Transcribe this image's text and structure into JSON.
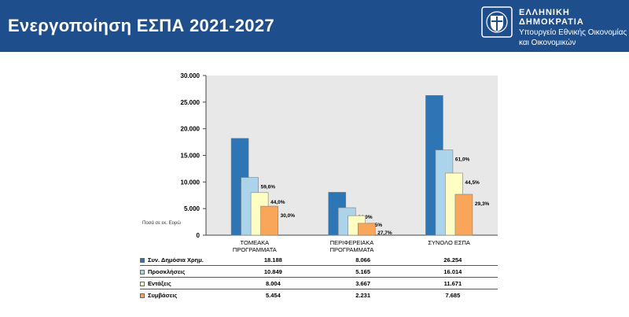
{
  "header": {
    "title": "Ενεργοποίηση ΕΣΠΑ 2021-2027",
    "org_name": "ΕΛΛΗΝΙΚΗ ΔΗΜΟΚΡΑΤΙΑ",
    "org_sub_1": "Υπουργείο Εθνικής Οικονομίας",
    "org_sub_2": "και Οικονομικών"
  },
  "units_label": "Ποσά σε εκ. Ευρώ",
  "chart_data": {
    "type": "bar",
    "categories": [
      [
        "ΤΟΜΕΑΚΑ",
        "ΠΡΟΓΡΑΜΜΑΤΑ"
      ],
      [
        "ΠΕΡΙΦΕΡΕΙΑΚΑ",
        "ΠΡΟΓΡΑΜΜΑΤΑ"
      ],
      [
        "ΣΥΝΟΛΟ ΕΣΠΑ"
      ]
    ],
    "series": [
      {
        "name": "Συν. Δημόσια Χρημ.",
        "color": "#2e75b6",
        "values": [
          18188,
          8066,
          26254
        ],
        "labels": [
          "18.188",
          "8.066",
          "26.254"
        ],
        "data_labels": [
          "",
          "",
          ""
        ]
      },
      {
        "name": "Προσκλήσεις",
        "color": "#abd4ea",
        "values": [
          10849,
          5165,
          16014
        ],
        "labels": [
          "10.849",
          "5.165",
          "16.014"
        ],
        "data_labels": [
          "59,6%",
          "64,0%",
          "61,0%"
        ]
      },
      {
        "name": "Εντάξεις",
        "color": "#ffffc4",
        "values": [
          8004,
          3667,
          11671
        ],
        "labels": [
          "8.004",
          "3.667",
          "11.671"
        ],
        "data_labels": [
          "44,0%",
          "45,5%",
          "44,5%"
        ]
      },
      {
        "name": "Συμβάσεις",
        "color": "#f9a65a",
        "values": [
          5454,
          2231,
          7685
        ],
        "labels": [
          "5.454",
          "2.231",
          "7.685"
        ],
        "data_labels": [
          "30,0%",
          "27,7%",
          "29,3%"
        ]
      }
    ],
    "yticks": [
      "0",
      "5.000",
      "10.000",
      "15.000",
      "20.000",
      "25.000",
      "30.000"
    ],
    "ylim": [
      0,
      30000
    ],
    "grid": false,
    "legend": "table-below"
  }
}
